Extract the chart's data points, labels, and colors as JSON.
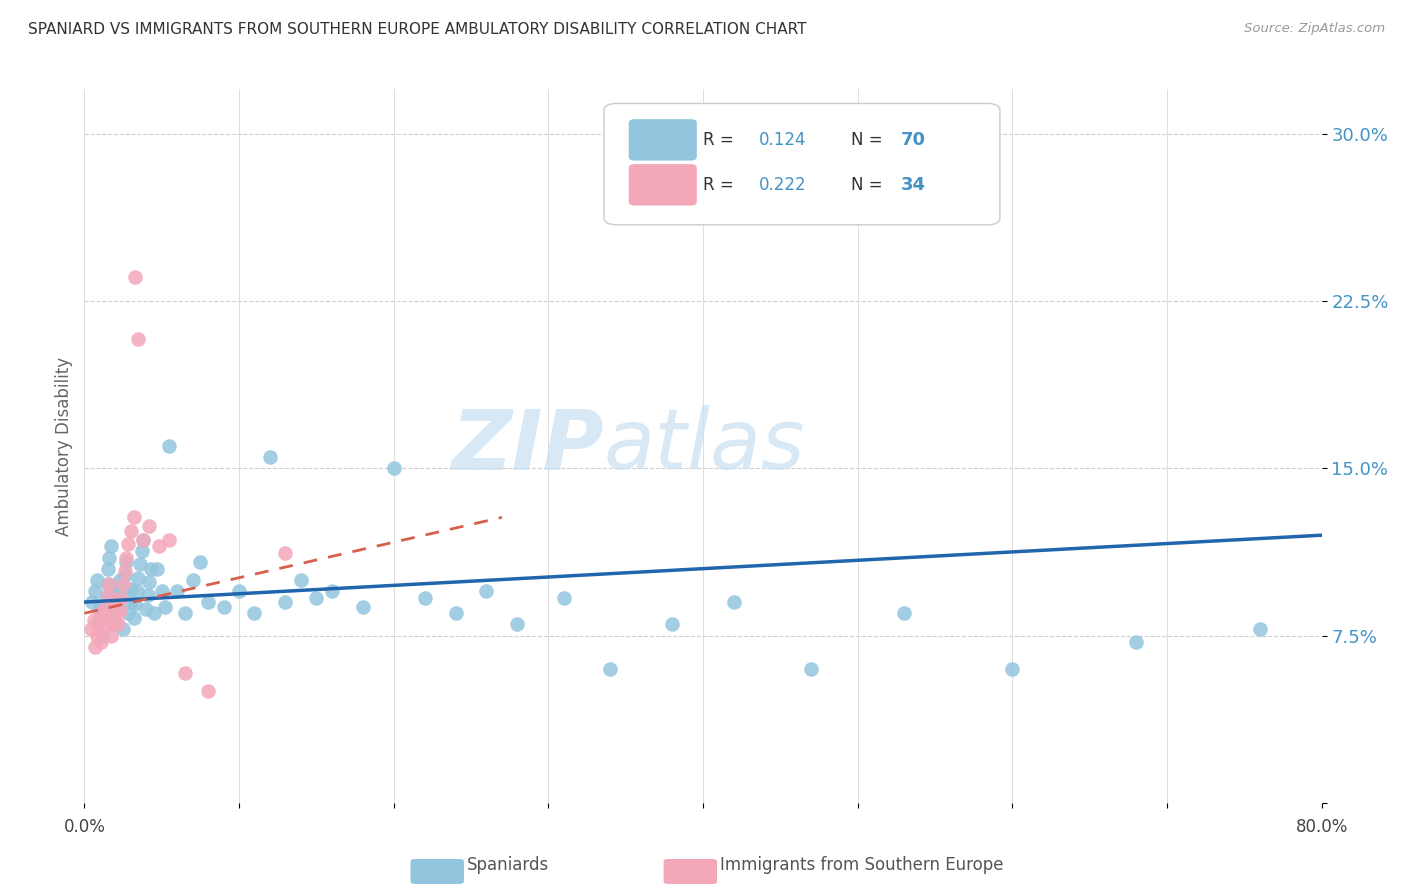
{
  "title": "SPANIARD VS IMMIGRANTS FROM SOUTHERN EUROPE AMBULATORY DISABILITY CORRELATION CHART",
  "source": "Source: ZipAtlas.com",
  "ylabel": "Ambulatory Disability",
  "yticks": [
    0.0,
    0.075,
    0.15,
    0.225,
    0.3
  ],
  "ytick_labels": [
    "",
    "7.5%",
    "15.0%",
    "22.5%",
    "30.0%"
  ],
  "xlim": [
    0.0,
    0.8
  ],
  "ylim": [
    0.0,
    0.32
  ],
  "color_blue": "#92c5de",
  "color_pink": "#f4a7b9",
  "color_blue_line": "#2166ac",
  "color_pink_line": "#d6604d",
  "color_blue_text": "#4393c3",
  "color_ytick": "#4393c3",
  "watermark_color": "#c8dff0",
  "spaniards_x": [
    0.005,
    0.007,
    0.008,
    0.01,
    0.01,
    0.012,
    0.013,
    0.014,
    0.015,
    0.015,
    0.016,
    0.017,
    0.018,
    0.019,
    0.02,
    0.02,
    0.022,
    0.023,
    0.024,
    0.025,
    0.025,
    0.026,
    0.027,
    0.028,
    0.03,
    0.03,
    0.032,
    0.033,
    0.034,
    0.035,
    0.036,
    0.037,
    0.038,
    0.04,
    0.041,
    0.042,
    0.043,
    0.045,
    0.047,
    0.05,
    0.052,
    0.055,
    0.06,
    0.065,
    0.07,
    0.075,
    0.08,
    0.09,
    0.1,
    0.11,
    0.12,
    0.13,
    0.14,
    0.15,
    0.16,
    0.18,
    0.2,
    0.22,
    0.24,
    0.26,
    0.28,
    0.31,
    0.34,
    0.38,
    0.42,
    0.47,
    0.53,
    0.6,
    0.68,
    0.76
  ],
  "spaniards_y": [
    0.09,
    0.095,
    0.1,
    0.082,
    0.088,
    0.075,
    0.085,
    0.092,
    0.098,
    0.105,
    0.11,
    0.115,
    0.087,
    0.093,
    0.08,
    0.095,
    0.088,
    0.1,
    0.092,
    0.078,
    0.095,
    0.102,
    0.108,
    0.085,
    0.09,
    0.096,
    0.083,
    0.089,
    0.095,
    0.101,
    0.107,
    0.113,
    0.118,
    0.087,
    0.093,
    0.099,
    0.105,
    0.085,
    0.105,
    0.095,
    0.088,
    0.16,
    0.095,
    0.085,
    0.1,
    0.108,
    0.09,
    0.088,
    0.095,
    0.085,
    0.155,
    0.09,
    0.1,
    0.092,
    0.095,
    0.088,
    0.15,
    0.092,
    0.085,
    0.095,
    0.08,
    0.092,
    0.06,
    0.08,
    0.09,
    0.06,
    0.085,
    0.06,
    0.072,
    0.078
  ],
  "immigrants_x": [
    0.004,
    0.006,
    0.007,
    0.008,
    0.009,
    0.01,
    0.011,
    0.012,
    0.013,
    0.014,
    0.015,
    0.016,
    0.017,
    0.018,
    0.019,
    0.02,
    0.022,
    0.023,
    0.024,
    0.025,
    0.026,
    0.027,
    0.028,
    0.03,
    0.032,
    0.033,
    0.035,
    0.038,
    0.042,
    0.048,
    0.055,
    0.065,
    0.08,
    0.13
  ],
  "immigrants_y": [
    0.078,
    0.082,
    0.07,
    0.075,
    0.08,
    0.085,
    0.072,
    0.078,
    0.083,
    0.088,
    0.093,
    0.098,
    0.075,
    0.08,
    0.085,
    0.09,
    0.08,
    0.086,
    0.092,
    0.098,
    0.104,
    0.11,
    0.116,
    0.122,
    0.128,
    0.236,
    0.208,
    0.118,
    0.124,
    0.115,
    0.118,
    0.058,
    0.05,
    0.112
  ],
  "blue_line_x0": 0.0,
  "blue_line_y0": 0.09,
  "blue_line_x1": 0.8,
  "blue_line_y1": 0.12,
  "pink_line_x0": 0.0,
  "pink_line_y0": 0.085,
  "pink_line_x1": 0.27,
  "pink_line_y1": 0.128
}
